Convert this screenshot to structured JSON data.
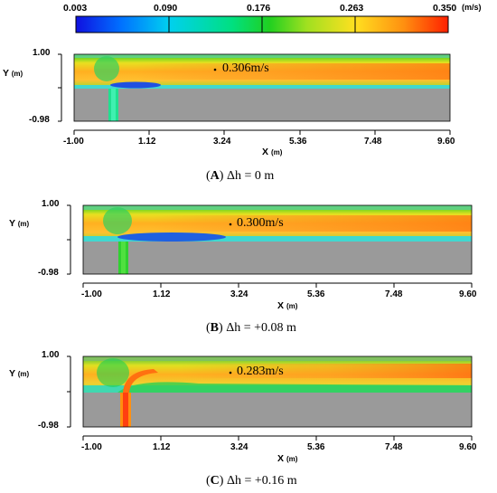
{
  "colorbar": {
    "ticks": [
      "0.003",
      "0.090",
      "0.176",
      "0.263",
      "0.350"
    ],
    "unit": "(m/s)"
  },
  "axes": {
    "y_label": "Y",
    "y_unit": "(m)",
    "x_label": "X",
    "x_unit": "(m)",
    "y_ticks": [
      "1.00",
      "-0.98"
    ],
    "x_ticks": [
      "-1.00",
      "1.12",
      "3.24",
      "5.36",
      "7.48",
      "9.60"
    ]
  },
  "panels": [
    {
      "id": "A",
      "annotation": "0.306m/s",
      "caption_letter": "A",
      "caption_rest": " Δh = 0 m"
    },
    {
      "id": "B",
      "annotation": "0.300m/s",
      "caption_letter": "B",
      "caption_rest": " Δh = +0.08 m"
    },
    {
      "id": "C",
      "annotation": "0.283m/s",
      "caption_letter": "C",
      "caption_rest": " Δh = +0.16 m"
    }
  ],
  "colors": {
    "solid": "#9a9a9a",
    "scale_low": "#0000ff",
    "scale_mid": "#00d060",
    "scale_high": "#ff2000"
  }
}
